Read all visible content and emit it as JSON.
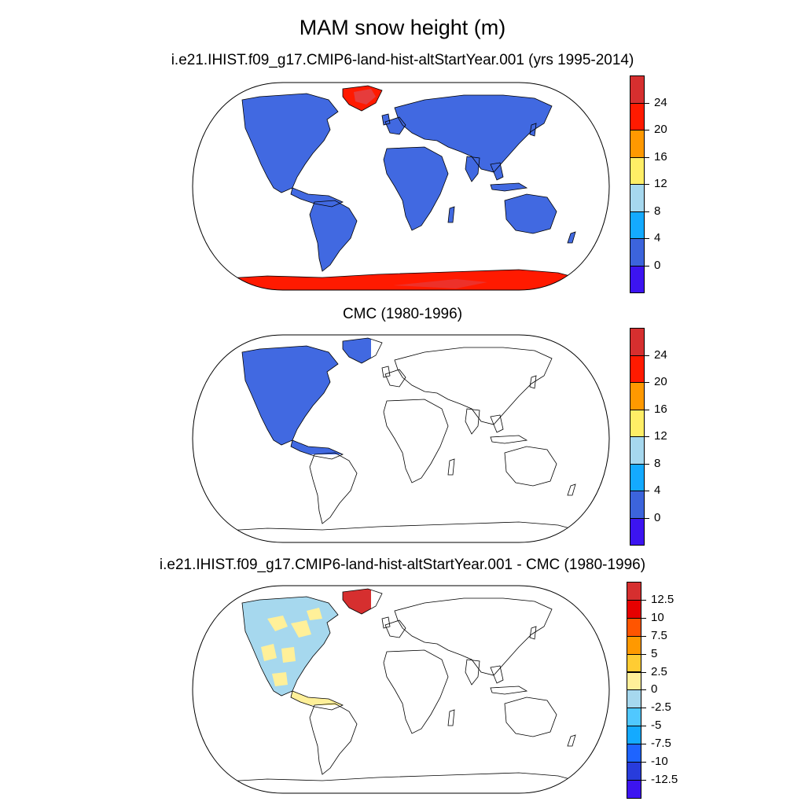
{
  "title": "MAM snow height (m)",
  "panels": [
    {
      "subtitle": "i.e21.IHIST.f09_g17.CMIP6-land-hist-altStartYear.001 (yrs 1995-2014)",
      "colorbar": {
        "labels": [
          "24",
          "20",
          "16",
          "12",
          "8",
          "4",
          "0"
        ],
        "colors": [
          "#d62f2f",
          "#ff1a00",
          "#ff9900",
          "#ffee66",
          "#a6d8ee",
          "#14aaff",
          "#3c64dc",
          "#3c14f0"
        ]
      }
    },
    {
      "subtitle": "CMC (1980-1996)",
      "colorbar": {
        "labels": [
          "24",
          "20",
          "16",
          "12",
          "8",
          "4",
          "0"
        ],
        "colors": [
          "#d62f2f",
          "#ff1a00",
          "#ff9900",
          "#ffee66",
          "#a6d8ee",
          "#14aaff",
          "#3c64dc",
          "#3c14f0"
        ]
      }
    },
    {
      "subtitle": "i.e21.IHIST.f09_g17.CMIP6-land-hist-altStartYear.001 - CMC (1980-1996)",
      "colorbar": {
        "labels": [
          "12.5",
          "10",
          "7.5",
          "5",
          "2.5",
          "0",
          "-2.5",
          "-5",
          "-7.5",
          "-10",
          "-12.5"
        ],
        "colors": [
          "#d62f2f",
          "#e60000",
          "#ff5500",
          "#ff9900",
          "#ffcc33",
          "#fff099",
          "#a6d8ee",
          "#50c8ff",
          "#14aaff",
          "#1e64ff",
          "#283cdc",
          "#3c14f0"
        ]
      }
    }
  ],
  "fill_colors": {
    "land_low": "#4169e1",
    "ice_high": "#ff1a00",
    "ice_core": "#e63c3c",
    "diff_pos": "#fff099",
    "diff_neg": "#a6d8ee",
    "diff_high": "#d62f2f"
  }
}
